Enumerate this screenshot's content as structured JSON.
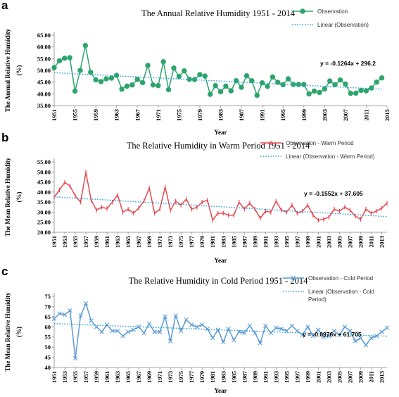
{
  "chart_data": [
    {
      "panel_letter": "a",
      "type": "line",
      "title": "The Annual Relative Humidity 1951 - 2014",
      "xlabel": "Year",
      "ylabel": "The Annual Relative Humidity (%)",
      "ylabel_lines": [
        "The Annual Relative Humidity",
        "(%)"
      ],
      "xlim": [
        1951,
        2015
      ],
      "ylim": [
        35,
        65
      ],
      "y_ticks": [
        "35.00",
        "40.00",
        "45.00",
        "50.00",
        "55.00",
        "60.00",
        "65.00"
      ],
      "x_ticks": [
        1951,
        1955,
        1959,
        1963,
        1967,
        1971,
        1975,
        1979,
        1983,
        1987,
        1991,
        1995,
        1999,
        2003,
        2007,
        2011,
        2015
      ],
      "grid": false,
      "legend_position": "top-right",
      "series": [
        {
          "name": "Observation",
          "style": "solid",
          "marker": "circle",
          "color": "#2ca46b",
          "x": [
            1951,
            1952,
            1953,
            1954,
            1955,
            1956,
            1957,
            1958,
            1959,
            1960,
            1961,
            1962,
            1963,
            1964,
            1965,
            1966,
            1967,
            1968,
            1969,
            1970,
            1971,
            1972,
            1973,
            1974,
            1975,
            1976,
            1977,
            1978,
            1979,
            1980,
            1981,
            1982,
            1983,
            1984,
            1985,
            1986,
            1987,
            1988,
            1989,
            1990,
            1991,
            1992,
            1993,
            1994,
            1995,
            1996,
            1997,
            1998,
            1999,
            2000,
            2001,
            2002,
            2003,
            2004,
            2005,
            2006,
            2007,
            2008,
            2009,
            2010,
            2011,
            2012,
            2013,
            2014
          ],
          "values": [
            51.2,
            54.1,
            55.2,
            55.4,
            41.2,
            50.0,
            60.6,
            49.2,
            46.0,
            45.2,
            46.4,
            46.7,
            47.9,
            42.0,
            43.3,
            43.8,
            46.2,
            44.8,
            52.1,
            43.8,
            43.5,
            53.7,
            41.8,
            51.0,
            47.4,
            49.8,
            46.2,
            46.1,
            48.2,
            47.6,
            39.8,
            43.5,
            40.9,
            43.3,
            41.3,
            45.6,
            42.8,
            47.7,
            45.6,
            39.4,
            44.7,
            43.2,
            47.2,
            44.9,
            43.9,
            46.4,
            44.0,
            44.0,
            44.0,
            40.0,
            41.2,
            40.6,
            42.1,
            45.5,
            43.9,
            45.9,
            44.2,
            40.2,
            40.3,
            41.5,
            41.3,
            42.5,
            45.0,
            46.8
          ]
        },
        {
          "name": "Linear (Observation)",
          "style": "dotted",
          "color": "#2e9fd4",
          "x": [
            1951,
            2014
          ],
          "values": [
            49.0,
            42.0
          ]
        }
      ],
      "annotations": [
        "y = -0.1264x + 296.2"
      ]
    },
    {
      "panel_letter": "b",
      "type": "line",
      "title": "The Relative Humidity in Warm Period 1951 - 2014",
      "xlabel": "Year",
      "ylabel": "The Mean Relative Humidity (%)",
      "ylabel_lines": [
        "The Mean Relative Humidity",
        "(%)"
      ],
      "xlim": [
        1951,
        2014
      ],
      "ylim": [
        20,
        55
      ],
      "y_ticks": [
        "20.00",
        "25.00",
        "30.00",
        "35.00",
        "40.00",
        "45.00",
        "50.00",
        "55.00"
      ],
      "x_ticks": [
        1951,
        1953,
        1955,
        1957,
        1959,
        1961,
        1963,
        1965,
        1967,
        1969,
        1971,
        1973,
        1975,
        1977,
        1979,
        1981,
        1983,
        1985,
        1987,
        1989,
        1991,
        1993,
        1995,
        1997,
        1999,
        2001,
        2003,
        2005,
        2007,
        2009,
        2011,
        2013
      ],
      "grid": false,
      "legend_position": "top-right",
      "series": [
        {
          "name": "Observation - Warm Period",
          "style": "solid",
          "marker": "tick",
          "color": "#e8474d",
          "x": [
            1951,
            1952,
            1953,
            1954,
            1955,
            1956,
            1957,
            1958,
            1959,
            1960,
            1961,
            1962,
            1963,
            1964,
            1965,
            1966,
            1967,
            1968,
            1969,
            1970,
            1971,
            1972,
            1973,
            1974,
            1975,
            1976,
            1977,
            1978,
            1979,
            1980,
            1981,
            1982,
            1983,
            1984,
            1985,
            1986,
            1987,
            1988,
            1989,
            1990,
            1991,
            1992,
            1993,
            1994,
            1995,
            1996,
            1997,
            1998,
            1999,
            2000,
            2001,
            2002,
            2003,
            2004,
            2005,
            2006,
            2007,
            2008,
            2009,
            2010,
            2011,
            2012,
            2013,
            2014
          ],
          "values": [
            37.5,
            41.0,
            44.8,
            43.0,
            38.0,
            35.0,
            49.8,
            36.0,
            31.0,
            32.5,
            31.8,
            35.0,
            38.5,
            30.0,
            31.5,
            29.5,
            32.0,
            35.5,
            42.0,
            29.5,
            31.5,
            42.5,
            31.0,
            35.5,
            33.5,
            36.5,
            31.5,
            32.5,
            35.0,
            36.0,
            26.0,
            29.5,
            29.5,
            28.5,
            28.5,
            35.0,
            31.5,
            34.5,
            31.5,
            27.0,
            30.5,
            30.0,
            35.5,
            31.0,
            30.0,
            33.5,
            29.5,
            30.5,
            33.5,
            28.5,
            26.0,
            26.5,
            27.5,
            31.5,
            30.5,
            32.5,
            31.0,
            28.0,
            26.5,
            31.5,
            29.5,
            30.5,
            32.0,
            34.5
          ]
        },
        {
          "name": "Linear (Observation - Warm Period)",
          "style": "dotted",
          "color": "#2e9fd4",
          "x": [
            1951,
            2014
          ],
          "values": [
            37.6,
            27.8
          ]
        }
      ],
      "annotations": [
        "y = -0.1552x + 37.605"
      ]
    },
    {
      "panel_letter": "c",
      "type": "line",
      "title": "The Relative Humidity in Cold Period 1951 - 2014",
      "xlabel": "Year",
      "ylabel": "The Mean Relative Humidity (%)",
      "ylabel_lines": [
        "The Mean Relative Humidity",
        "(%)"
      ],
      "xlim": [
        1951,
        2014
      ],
      "ylim": [
        40,
        75
      ],
      "y_ticks": [
        "40",
        "45",
        "50",
        "55",
        "60",
        "65",
        "70",
        "75"
      ],
      "x_ticks": [
        1951,
        1953,
        1955,
        1957,
        1959,
        1961,
        1963,
        1965,
        1967,
        1969,
        1971,
        1973,
        1975,
        1977,
        1979,
        1981,
        1983,
        1985,
        1987,
        1989,
        1991,
        1993,
        1995,
        1997,
        1999,
        2001,
        2003,
        2005,
        2007,
        2009,
        2011,
        2013
      ],
      "grid": false,
      "legend_position": "top-right",
      "series": [
        {
          "name": "Observation - Cold  Period",
          "style": "solid",
          "marker": "x",
          "color": "#5b9bd5",
          "x": [
            1951,
            1952,
            1953,
            1954,
            1955,
            1956,
            1957,
            1958,
            1959,
            1960,
            1961,
            1962,
            1963,
            1964,
            1965,
            1966,
            1967,
            1968,
            1969,
            1970,
            1971,
            1972,
            1973,
            1974,
            1975,
            1976,
            1977,
            1978,
            1979,
            1980,
            1981,
            1982,
            1983,
            1984,
            1985,
            1986,
            1987,
            1988,
            1989,
            1990,
            1991,
            1992,
            1993,
            1994,
            1995,
            1996,
            1997,
            1998,
            1999,
            2000,
            2001,
            2002,
            2003,
            2004,
            2005,
            2006,
            2007,
            2008,
            2009,
            2010,
            2011,
            2012,
            2013,
            2014
          ],
          "values": [
            64.0,
            66.5,
            66.0,
            68.0,
            44.5,
            65.5,
            71.5,
            63.0,
            60.0,
            57.5,
            61.0,
            58.0,
            58.0,
            55.5,
            57.5,
            58.5,
            60.0,
            57.0,
            61.5,
            57.5,
            57.5,
            65.0,
            53.0,
            65.5,
            58.0,
            63.5,
            61.0,
            60.0,
            61.0,
            59.0,
            54.5,
            58.5,
            52.5,
            59.0,
            53.5,
            57.5,
            57.0,
            60.5,
            57.0,
            52.0,
            60.5,
            57.0,
            59.5,
            59.0,
            58.0,
            60.5,
            58.0,
            56.0,
            60.0,
            55.5,
            58.5,
            55.0,
            55.5,
            58.0,
            56.0,
            60.0,
            58.0,
            53.0,
            54.5,
            51.0,
            54.5,
            55.5,
            57.5,
            59.5
          ]
        },
        {
          "name": "Linear (Observation - Cold Period)",
          "legend_lines": [
            "Linear (Observation - Cold",
            "Period)"
          ],
          "style": "dotted",
          "color": "#2e9fd4",
          "x": [
            1951,
            2014
          ],
          "values": [
            61.6,
            55.4
          ]
        }
      ],
      "annotations": [
        "y = -0.0976x + 61.705"
      ]
    }
  ]
}
